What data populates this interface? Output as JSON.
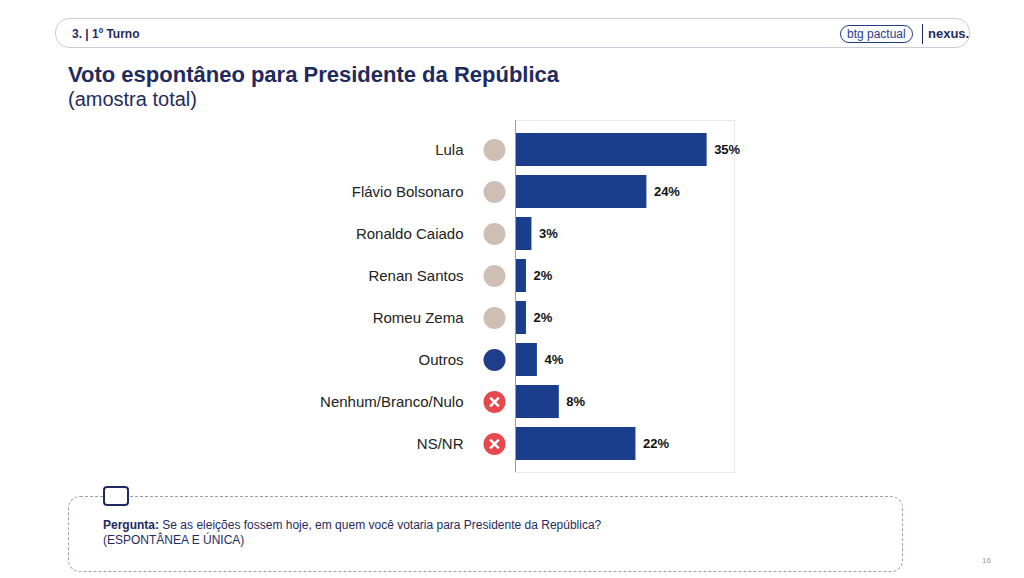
{
  "chart_data": {
    "type": "bar",
    "orientation": "horizontal",
    "title": "Voto espontâneo para Presidente da República",
    "subtitle": "(amostra total)",
    "categories": [
      "Lula",
      "Flávio Bolsonaro",
      "Ronaldo Caiado",
      "Renan Santos",
      "Romeu Zema",
      "Outros",
      "Nenhum/Branco/Nulo",
      "NS/NR"
    ],
    "values": [
      35,
      24,
      3,
      2,
      2,
      4,
      8,
      22
    ],
    "value_labels": [
      "35%",
      "24%",
      "3%",
      "2%",
      "2%",
      "4%",
      "8%",
      "22%"
    ],
    "data_labels": true,
    "color": "#1a3e8c",
    "xlim": [
      0,
      40
    ],
    "xticks": [],
    "tick_labels": "y",
    "annotations": [
      "3. | 1º Turno",
      "btg pactual",
      "nexus.",
      "Pergunta:",
      "Se as eleições fossem hoje, em quem você votaria para Presidente da República?",
      "(ESPONTÂNEA E ÚNICA)",
      "16"
    ]
  }
}
